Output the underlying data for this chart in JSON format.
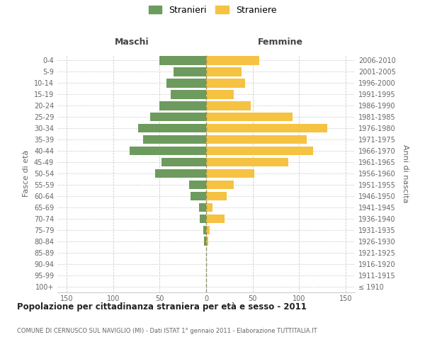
{
  "age_groups": [
    "100+",
    "95-99",
    "90-94",
    "85-89",
    "80-84",
    "75-79",
    "70-74",
    "65-69",
    "60-64",
    "55-59",
    "50-54",
    "45-49",
    "40-44",
    "35-39",
    "30-34",
    "25-29",
    "20-24",
    "15-19",
    "10-14",
    "5-9",
    "0-4"
  ],
  "birth_years": [
    "≤ 1910",
    "1911-1915",
    "1916-1920",
    "1921-1925",
    "1926-1930",
    "1931-1935",
    "1936-1940",
    "1941-1945",
    "1946-1950",
    "1951-1955",
    "1956-1960",
    "1961-1965",
    "1966-1970",
    "1971-1975",
    "1976-1980",
    "1981-1985",
    "1986-1990",
    "1991-1995",
    "1996-2000",
    "2001-2005",
    "2006-2010"
  ],
  "males": [
    0,
    0,
    0,
    0,
    2,
    3,
    7,
    8,
    17,
    18,
    55,
    48,
    82,
    68,
    73,
    60,
    50,
    38,
    43,
    35,
    50
  ],
  "females": [
    0,
    0,
    0,
    0,
    2,
    4,
    20,
    7,
    22,
    30,
    52,
    88,
    115,
    108,
    130,
    93,
    48,
    30,
    42,
    38,
    57
  ],
  "male_color": "#6d9b5e",
  "female_color": "#f5c242",
  "background_color": "#ffffff",
  "grid_color": "#cccccc",
  "title": "Popolazione per cittadinanza straniera per età e sesso - 2011",
  "subtitle": "COMUNE DI CERNUSCO SUL NAVIGLIO (MI) - Dati ISTAT 1° gennaio 2011 - Elaborazione TUTTITALIA.IT",
  "ylabel_left": "Fasce di età",
  "ylabel_right": "Anni di nascita",
  "header_left": "Maschi",
  "header_right": "Femmine",
  "legend_male": "Stranieri",
  "legend_female": "Straniere",
  "xlim": 160,
  "xticks": [
    -150,
    -100,
    -50,
    0,
    50,
    100,
    150
  ]
}
